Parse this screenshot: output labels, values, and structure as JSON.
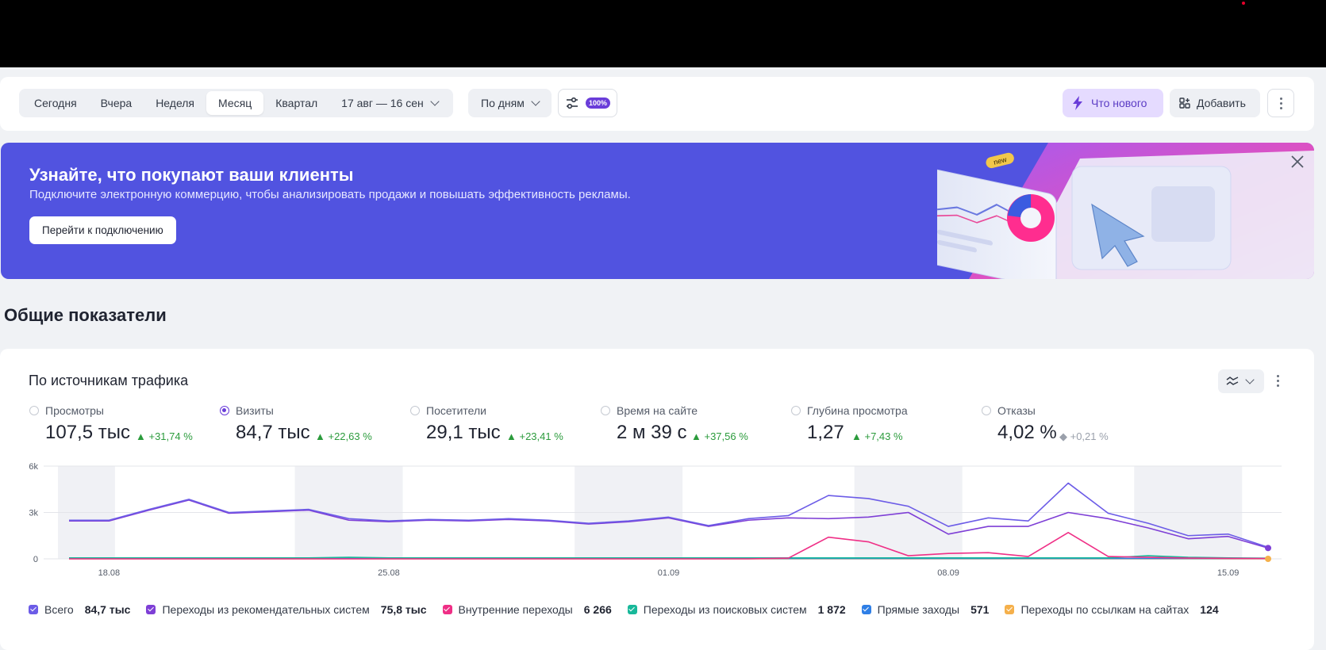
{
  "toolbar": {
    "periods": [
      "Сегодня",
      "Вчера",
      "Неделя",
      "Месяц",
      "Квартал"
    ],
    "active_period": "Месяц",
    "date_range": "17 авг — 16 сен",
    "grouping": "По дням",
    "sampling": "100%",
    "whats_new": "Что нового",
    "add": "Добавить"
  },
  "banner": {
    "title": "Узнайте, что покупают ваши клиенты",
    "subtitle": "Подключите электронную коммерцию, чтобы анализировать продажи и повышать эффективность рекламы.",
    "cta": "Перейти к подключению",
    "tag": "new"
  },
  "section_title": "Общие показатели",
  "card": {
    "title": "По источникам трафика",
    "metrics": [
      {
        "label": "Просмотры",
        "value": "107,5 тыс",
        "delta": "▲ +31,74 %",
        "selected": false,
        "trend": "up"
      },
      {
        "label": "Визиты",
        "value": "84,7 тыс",
        "delta": "▲ +22,63 %",
        "selected": true,
        "trend": "up"
      },
      {
        "label": "Посетители",
        "value": "29,1 тыс",
        "delta": "▲ +23,41 %",
        "selected": false,
        "trend": "up"
      },
      {
        "label": "Время на сайте",
        "value": "2 м 39 с",
        "delta": "▲ +37,56 %",
        "selected": false,
        "trend": "up"
      },
      {
        "label": "Глубина просмотра",
        "value": "1,27",
        "delta": "▲ +7,43 %",
        "selected": false,
        "trend": "up"
      },
      {
        "label": "Отказы",
        "value": "4,02 %",
        "delta": "◆ +0,21 %",
        "selected": false,
        "trend": "neutral"
      }
    ],
    "legend": [
      {
        "name": "Всего",
        "value": "84,7 тыс",
        "color": "#6c5ce7"
      },
      {
        "name": "Переходы из рекомендательных систем",
        "value": "75,8 тыс",
        "color": "#7e3fd6"
      },
      {
        "name": "Внутренние переходы",
        "value": "6 266",
        "color": "#ef2f86"
      },
      {
        "name": "Переходы из поисковых систем",
        "value": "1 872",
        "color": "#18b89a"
      },
      {
        "name": "Прямые заходы",
        "value": "571",
        "color": "#2f7fe6"
      },
      {
        "name": "Переходы по ссылкам на сайтах",
        "value": "124",
        "color": "#f5b04b"
      }
    ]
  },
  "chart_data": {
    "type": "line",
    "y_ticks": [
      "6k",
      "3k",
      "0"
    ],
    "ylim": [
      0,
      6000
    ],
    "x_tick_labels": [
      {
        "label": "18.08",
        "index": 1
      },
      {
        "label": "25.08",
        "index": 8
      },
      {
        "label": "01.09",
        "index": 15
      },
      {
        "label": "08.09",
        "index": 22
      },
      {
        "label": "15.09",
        "index": 29
      }
    ],
    "x": [
      "17.08",
      "18.08",
      "19.08",
      "20.08",
      "21.08",
      "22.08",
      "23.08",
      "24.08",
      "25.08",
      "26.08",
      "27.08",
      "28.08",
      "29.08",
      "30.08",
      "31.08",
      "01.09",
      "02.09",
      "03.09",
      "04.09",
      "05.09",
      "06.09",
      "07.09",
      "08.09",
      "09.09",
      "10.09",
      "11.09",
      "12.09",
      "13.09",
      "14.09",
      "15.09",
      "16.09"
    ],
    "weekend_bands": [
      [
        0,
        0.8
      ],
      [
        6,
        8
      ],
      [
        13,
        15
      ],
      [
        20,
        22
      ],
      [
        27,
        29
      ]
    ],
    "series": [
      {
        "name": "Всего",
        "color": "#6c5ce7",
        "values": [
          2500,
          2500,
          3200,
          3850,
          3000,
          3100,
          3200,
          2600,
          2450,
          2550,
          2500,
          2600,
          2500,
          2300,
          2450,
          2700,
          2150,
          2600,
          2800,
          4100,
          3900,
          3400,
          2100,
          2650,
          2450,
          4900,
          2950,
          2300,
          1500,
          1600,
          750
        ]
      },
      {
        "name": "Переходы из рекомендательных систем",
        "color": "#7e3fd6",
        "values": [
          2450,
          2450,
          3150,
          3800,
          2950,
          3050,
          3150,
          2500,
          2400,
          2500,
          2450,
          2550,
          2450,
          2250,
          2400,
          2650,
          2100,
          2500,
          2650,
          2600,
          2700,
          3000,
          1600,
          2100,
          2100,
          3000,
          2600,
          2000,
          1300,
          1450,
          700
        ]
      },
      {
        "name": "Внутренние переходы",
        "color": "#ef2f86",
        "values": [
          0,
          0,
          0,
          0,
          0,
          0,
          0,
          0,
          0,
          0,
          0,
          0,
          0,
          0,
          0,
          0,
          0,
          0,
          50,
          1400,
          1100,
          200,
          350,
          400,
          150,
          1700,
          150,
          100,
          50,
          30,
          20
        ]
      },
      {
        "name": "Переходы из поисковых систем",
        "color": "#18b89a",
        "values": [
          60,
          60,
          60,
          60,
          60,
          60,
          60,
          100,
          60,
          60,
          60,
          60,
          60,
          60,
          60,
          60,
          60,
          60,
          60,
          60,
          60,
          60,
          60,
          60,
          60,
          60,
          60,
          200,
          100,
          60,
          40
        ]
      },
      {
        "name": "Прямые заходы",
        "color": "#2f7fe6",
        "values": [
          20,
          20,
          20,
          20,
          20,
          20,
          20,
          20,
          20,
          20,
          20,
          20,
          20,
          20,
          20,
          20,
          20,
          20,
          20,
          20,
          20,
          20,
          20,
          20,
          20,
          20,
          20,
          20,
          20,
          20,
          20
        ]
      },
      {
        "name": "Переходы по ссылкам на сайтах",
        "color": "#f5b04b",
        "values": [
          5,
          5,
          5,
          5,
          5,
          5,
          5,
          5,
          5,
          5,
          5,
          5,
          5,
          5,
          5,
          5,
          5,
          5,
          5,
          5,
          5,
          5,
          5,
          5,
          5,
          5,
          5,
          5,
          5,
          5,
          5
        ]
      }
    ]
  }
}
